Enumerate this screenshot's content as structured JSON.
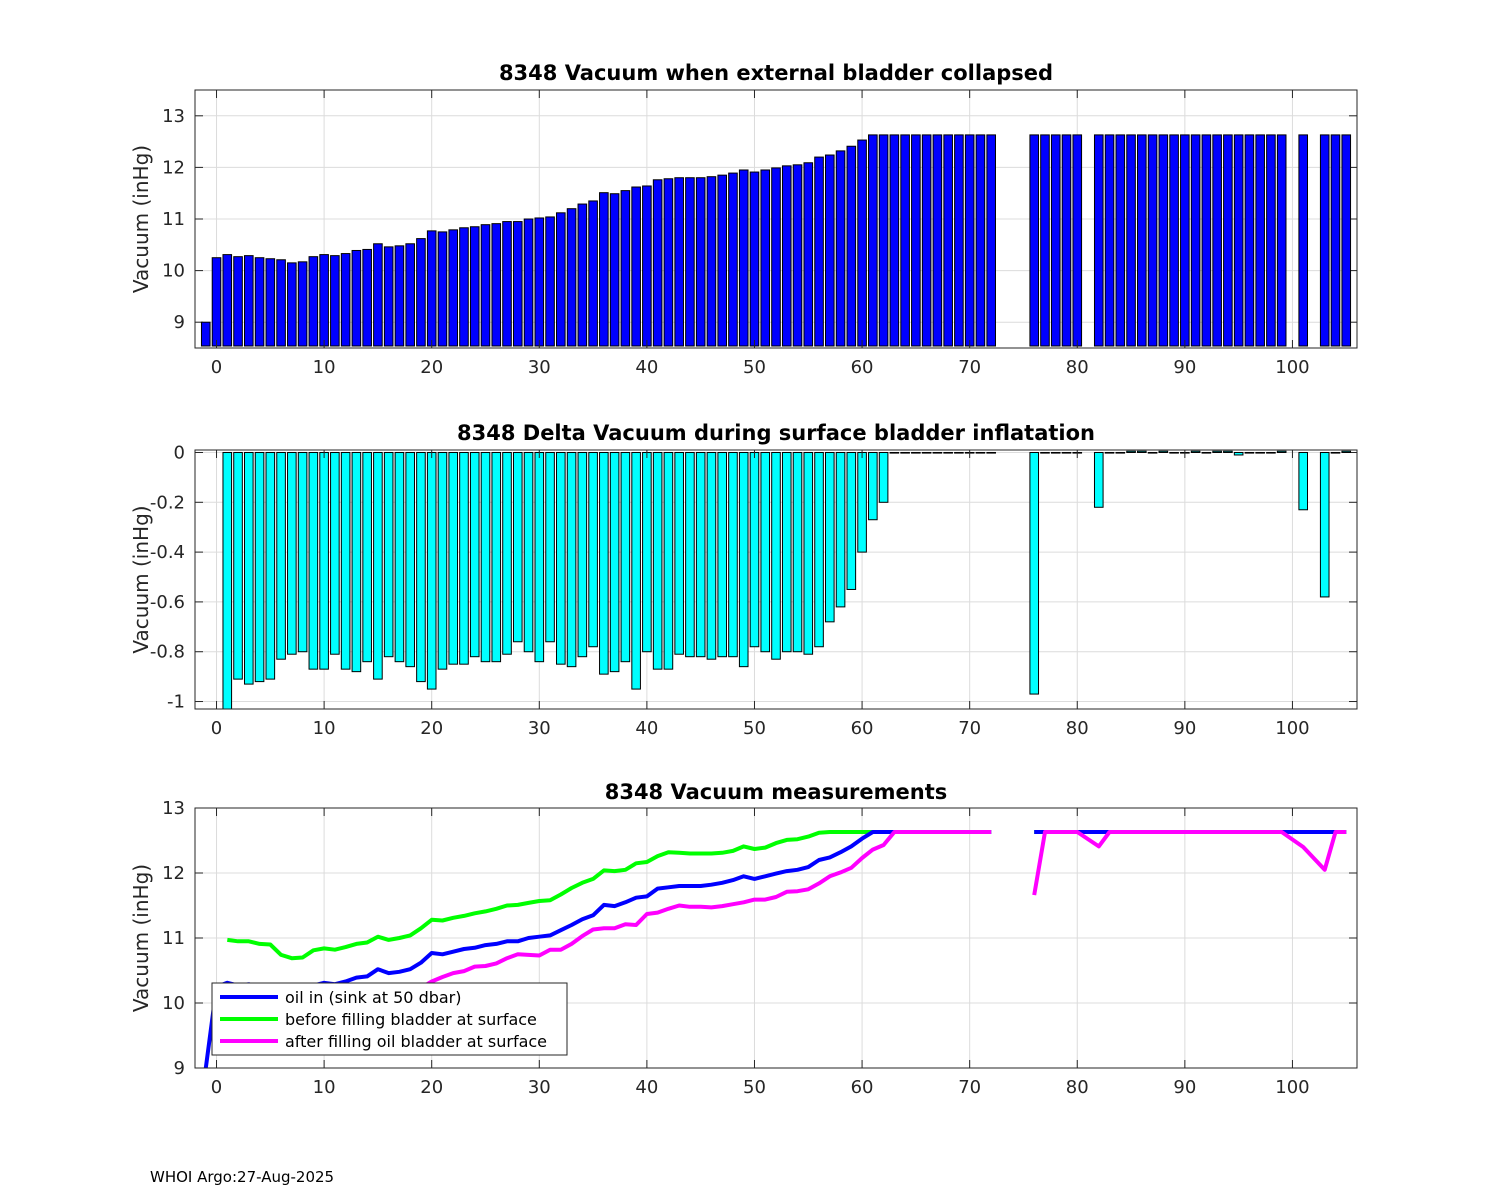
{
  "footer": "WHOI Argo:27-Aug-2025",
  "chart_data": [
    {
      "type": "bar",
      "title": "8348 Vacuum when external bladder collapsed",
      "xlabel": "",
      "ylabel": "Vacuum (inHg)",
      "xlim": [
        -2,
        106
      ],
      "ylim": [
        8.5,
        13.5
      ],
      "xticks": [
        0,
        10,
        20,
        30,
        40,
        50,
        60,
        70,
        80,
        90,
        100
      ],
      "yticks": [
        9,
        10,
        11,
        12,
        13
      ],
      "ytick_labels": [
        "9",
        "10",
        "11",
        "12",
        "13"
      ],
      "grid": true,
      "bar_color": "#0000ff",
      "x": [
        -1,
        0,
        1,
        2,
        3,
        4,
        5,
        6,
        7,
        8,
        9,
        10,
        11,
        12,
        13,
        14,
        15,
        16,
        17,
        18,
        19,
        20,
        21,
        22,
        23,
        24,
        25,
        26,
        27,
        28,
        29,
        30,
        31,
        32,
        33,
        34,
        35,
        36,
        37,
        38,
        39,
        40,
        41,
        42,
        43,
        44,
        45,
        46,
        47,
        48,
        49,
        50,
        51,
        52,
        53,
        54,
        55,
        56,
        57,
        58,
        59,
        60,
        61,
        62,
        63,
        64,
        65,
        66,
        67,
        68,
        69,
        70,
        71,
        72,
        73,
        74,
        75,
        76,
        77,
        78,
        79,
        80,
        82,
        83,
        84,
        85,
        86,
        87,
        88,
        89,
        90,
        91,
        92,
        93,
        94,
        95,
        96,
        97,
        98,
        99,
        101,
        103,
        104,
        105
      ],
      "values": [
        9.0,
        10.25,
        10.31,
        10.27,
        10.29,
        10.25,
        10.23,
        10.21,
        10.15,
        10.17,
        10.27,
        10.31,
        10.29,
        10.33,
        10.39,
        10.41,
        10.52,
        10.46,
        10.48,
        10.52,
        10.62,
        10.77,
        10.75,
        10.79,
        10.83,
        10.85,
        10.89,
        10.91,
        10.95,
        10.95,
        11.0,
        11.02,
        11.04,
        11.12,
        11.2,
        11.29,
        11.35,
        11.51,
        11.49,
        11.55,
        11.62,
        11.64,
        11.76,
        11.78,
        11.8,
        11.8,
        11.8,
        11.82,
        11.85,
        11.89,
        11.95,
        11.91,
        11.95,
        11.99,
        12.03,
        12.05,
        12.09,
        12.2,
        12.24,
        12.32,
        12.41,
        12.53,
        12.63,
        12.63,
        12.63,
        12.63,
        12.63,
        12.63,
        12.63,
        12.63,
        12.63,
        12.63,
        12.63,
        12.63,
        null,
        null,
        null,
        12.63,
        12.63,
        12.63,
        12.63,
        12.63,
        12.63,
        12.63,
        12.63,
        12.63,
        12.63,
        12.63,
        12.63,
        12.63,
        12.63,
        12.63,
        12.63,
        12.63,
        12.63,
        12.63,
        12.63,
        12.63,
        12.63,
        12.63,
        12.63,
        12.63,
        12.63,
        12.63
      ]
    },
    {
      "type": "bar",
      "title": "8348 Delta Vacuum during surface bladder inflatation",
      "xlabel": "",
      "ylabel": "Vacuum (inHg)",
      "xlim": [
        -2,
        106
      ],
      "ylim": [
        -1.03,
        0.01
      ],
      "xticks": [
        0,
        10,
        20,
        30,
        40,
        50,
        60,
        70,
        80,
        90,
        100
      ],
      "yticks": [
        -1,
        -0.8,
        -0.6,
        -0.4,
        -0.2,
        0
      ],
      "ytick_labels": [
        "-1",
        "-0.8",
        "-0.6",
        "-0.4",
        "-0.2",
        "0"
      ],
      "grid": true,
      "bar_color": "#00ffff",
      "x": [
        -1,
        0,
        1,
        2,
        3,
        4,
        5,
        6,
        7,
        8,
        9,
        10,
        11,
        12,
        13,
        14,
        15,
        16,
        17,
        18,
        19,
        20,
        21,
        22,
        23,
        24,
        25,
        26,
        27,
        28,
        29,
        30,
        31,
        32,
        33,
        34,
        35,
        36,
        37,
        38,
        39,
        40,
        41,
        42,
        43,
        44,
        45,
        46,
        47,
        48,
        49,
        50,
        51,
        52,
        53,
        54,
        55,
        56,
        57,
        58,
        59,
        60,
        61,
        62,
        63,
        64,
        65,
        66,
        67,
        68,
        69,
        70,
        71,
        72,
        73,
        74,
        75,
        76,
        77,
        78,
        79,
        80,
        82,
        83,
        84,
        85,
        86,
        87,
        88,
        89,
        90,
        91,
        92,
        93,
        94,
        95,
        96,
        97,
        98,
        99,
        101,
        103,
        104,
        105
      ],
      "values": [
        null,
        null,
        -1.03,
        -0.91,
        -0.93,
        -0.92,
        -0.91,
        -0.83,
        -0.81,
        -0.8,
        -0.87,
        -0.87,
        -0.81,
        -0.87,
        -0.88,
        -0.84,
        -0.91,
        -0.82,
        -0.84,
        -0.86,
        -0.92,
        -0.95,
        -0.87,
        -0.85,
        -0.85,
        -0.82,
        -0.84,
        -0.84,
        -0.81,
        -0.76,
        -0.8,
        -0.84,
        -0.76,
        -0.85,
        -0.86,
        -0.82,
        -0.78,
        -0.89,
        -0.88,
        -0.84,
        -0.95,
        -0.8,
        -0.87,
        -0.87,
        -0.81,
        -0.82,
        -0.82,
        -0.83,
        -0.82,
        -0.82,
        -0.86,
        -0.78,
        -0.8,
        -0.83,
        -0.8,
        -0.8,
        -0.81,
        -0.78,
        -0.68,
        -0.62,
        -0.55,
        -0.4,
        -0.27,
        -0.2,
        0,
        0,
        0,
        0,
        0,
        0,
        0,
        0,
        0,
        0,
        null,
        null,
        null,
        -0.97,
        0,
        0,
        0,
        0,
        -0.22,
        0,
        0,
        0.005,
        0.005,
        0,
        0.005,
        0,
        0,
        0.005,
        0,
        0.005,
        0.005,
        -0.01,
        0,
        0,
        0,
        0.005,
        -0.23,
        -0.58,
        0,
        0.005
      ]
    },
    {
      "type": "line",
      "title": "8348 Vacuum measurements",
      "xlabel": "",
      "ylabel": "Vacuum (inHg)",
      "xlim": [
        -2,
        106
      ],
      "ylim": [
        9,
        13
      ],
      "xticks": [
        0,
        10,
        20,
        30,
        40,
        50,
        60,
        70,
        80,
        90,
        100
      ],
      "yticks": [
        9,
        10,
        11,
        12,
        13
      ],
      "ytick_labels": [
        "9",
        "10",
        "11",
        "12",
        "13"
      ],
      "grid": true,
      "legend_position": "bottom-left",
      "x": [
        -1,
        0,
        1,
        2,
        3,
        4,
        5,
        6,
        7,
        8,
        9,
        10,
        11,
        12,
        13,
        14,
        15,
        16,
        17,
        18,
        19,
        20,
        21,
        22,
        23,
        24,
        25,
        26,
        27,
        28,
        29,
        30,
        31,
        32,
        33,
        34,
        35,
        36,
        37,
        38,
        39,
        40,
        41,
        42,
        43,
        44,
        45,
        46,
        47,
        48,
        49,
        50,
        51,
        52,
        53,
        54,
        55,
        56,
        57,
        58,
        59,
        60,
        61,
        62,
        63,
        64,
        65,
        66,
        67,
        68,
        69,
        70,
        71,
        72,
        73,
        74,
        75,
        76,
        77,
        78,
        79,
        80,
        82,
        83,
        84,
        85,
        86,
        87,
        88,
        89,
        90,
        91,
        92,
        93,
        94,
        95,
        96,
        97,
        98,
        99,
        101,
        103,
        104,
        105
      ],
      "series": [
        {
          "name": "oil in (sink at 50 dbar)",
          "color": "#0000ff",
          "values": [
            9.0,
            10.25,
            10.31,
            10.27,
            10.29,
            10.25,
            10.23,
            10.21,
            10.15,
            10.17,
            10.27,
            10.31,
            10.29,
            10.33,
            10.39,
            10.41,
            10.52,
            10.46,
            10.48,
            10.52,
            10.62,
            10.77,
            10.75,
            10.79,
            10.83,
            10.85,
            10.89,
            10.91,
            10.95,
            10.95,
            11.0,
            11.02,
            11.04,
            11.12,
            11.2,
            11.29,
            11.35,
            11.51,
            11.49,
            11.55,
            11.62,
            11.64,
            11.76,
            11.78,
            11.8,
            11.8,
            11.8,
            11.82,
            11.85,
            11.89,
            11.95,
            11.91,
            11.95,
            11.99,
            12.03,
            12.05,
            12.09,
            12.2,
            12.24,
            12.32,
            12.41,
            12.53,
            12.63,
            12.63,
            12.63,
            12.63,
            12.63,
            12.63,
            12.63,
            12.63,
            12.63,
            12.63,
            12.63,
            12.63,
            null,
            null,
            null,
            12.63,
            12.63,
            12.63,
            12.63,
            12.63,
            12.63,
            12.63,
            12.63,
            12.63,
            12.63,
            12.63,
            12.63,
            12.63,
            12.63,
            12.63,
            12.63,
            12.63,
            12.63,
            12.63,
            12.63,
            12.63,
            12.63,
            12.63,
            12.63,
            12.63,
            12.63,
            12.63
          ]
        },
        {
          "name": "before filling bladder at surface",
          "color": "#00ff00",
          "values": [
            null,
            null,
            10.97,
            10.95,
            10.95,
            10.91,
            10.9,
            10.74,
            10.69,
            10.7,
            10.81,
            10.84,
            10.82,
            10.86,
            10.91,
            10.93,
            11.02,
            10.97,
            11.0,
            11.04,
            11.15,
            11.28,
            11.27,
            11.31,
            11.34,
            11.38,
            11.41,
            11.45,
            11.5,
            11.51,
            11.54,
            11.57,
            11.58,
            11.67,
            11.77,
            11.85,
            11.91,
            12.04,
            12.03,
            12.05,
            12.15,
            12.17,
            12.26,
            12.32,
            12.31,
            12.3,
            12.3,
            12.3,
            12.31,
            12.34,
            12.41,
            12.37,
            12.39,
            12.46,
            12.51,
            12.52,
            12.56,
            12.62,
            12.63,
            12.63,
            12.63,
            12.63,
            12.63,
            12.63,
            12.63,
            12.63,
            12.63,
            12.63,
            12.63,
            12.63,
            12.63,
            12.63,
            12.63,
            12.63,
            null,
            null,
            null,
            12.63,
            12.63,
            12.63,
            12.63,
            12.63,
            12.63,
            12.63,
            12.63,
            12.63,
            12.63,
            12.63,
            12.63,
            12.63,
            12.63,
            12.63,
            12.63,
            12.63,
            12.63,
            12.63,
            12.63,
            12.63,
            12.63,
            12.63,
            12.63,
            12.63,
            12.63,
            12.63
          ]
        },
        {
          "name": "after filling oil bladder at surface",
          "color": "#ff00ff",
          "values": [
            null,
            null,
            9.94,
            10.04,
            10.02,
            9.99,
            9.99,
            9.91,
            9.88,
            9.9,
            9.94,
            9.97,
            10.01,
            9.99,
            10.03,
            10.09,
            10.11,
            10.15,
            10.16,
            10.18,
            10.23,
            10.33,
            10.4,
            10.46,
            10.49,
            10.56,
            10.57,
            10.61,
            10.69,
            10.75,
            10.74,
            10.73,
            10.82,
            10.82,
            10.91,
            11.03,
            11.13,
            11.15,
            11.15,
            11.21,
            11.2,
            11.37,
            11.39,
            11.45,
            11.5,
            11.48,
            11.48,
            11.47,
            11.49,
            11.52,
            11.55,
            11.59,
            11.59,
            11.63,
            11.71,
            11.72,
            11.75,
            11.84,
            11.95,
            12.01,
            12.08,
            12.23,
            12.36,
            12.43,
            12.63,
            12.63,
            12.63,
            12.63,
            12.63,
            12.63,
            12.63,
            12.63,
            12.63,
            12.63,
            null,
            null,
            null,
            11.66,
            12.63,
            12.63,
            12.63,
            12.63,
            12.41,
            12.63,
            12.63,
            12.63,
            12.63,
            12.63,
            12.63,
            12.63,
            12.63,
            12.63,
            12.63,
            12.63,
            12.63,
            12.63,
            12.63,
            12.63,
            12.63,
            12.63,
            12.4,
            12.05,
            12.63,
            12.63
          ]
        }
      ]
    }
  ]
}
